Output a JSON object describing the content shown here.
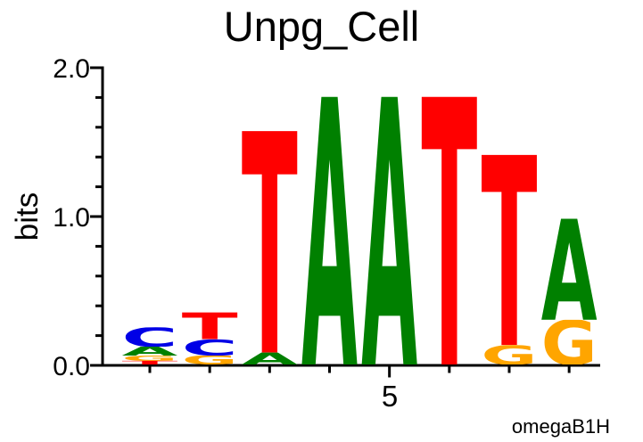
{
  "chart_data": {
    "type": "sequence_logo",
    "title": "Unpg_Cell",
    "xlabel": "",
    "ylabel": "bits",
    "credit": "omegaB1H",
    "ylim": [
      0.0,
      2.0
    ],
    "ytick_labels": [
      "0.0",
      "1.0",
      "2.0"
    ],
    "ytick_major_values": [
      0.0,
      1.0,
      2.0
    ],
    "ytick_minor_step": 0.2,
    "grid": false,
    "legend": "none",
    "x_positions": [
      1,
      2,
      3,
      4,
      5,
      6,
      7,
      8
    ],
    "x_labeled_position": 5,
    "x_label_text": "5",
    "colors": {
      "A": "#008000",
      "C": "#0000E6",
      "G": "#FFA500",
      "T": "#FF0000"
    },
    "positions": [
      {
        "pos": 1,
        "stack": [
          {
            "base": "C",
            "bits": 0.13
          },
          {
            "base": "A",
            "bits": 0.06
          },
          {
            "base": "G",
            "bits": 0.035
          },
          {
            "base": "T",
            "bits": 0.025
          }
        ]
      },
      {
        "pos": 2,
        "stack": [
          {
            "base": "T",
            "bits": 0.18
          },
          {
            "base": "C",
            "bits": 0.11
          },
          {
            "base": "G",
            "bits": 0.06
          }
        ]
      },
      {
        "pos": 3,
        "stack": [
          {
            "base": "T",
            "bits": 1.49
          },
          {
            "base": "A",
            "bits": 0.08
          }
        ]
      },
      {
        "pos": 4,
        "stack": [
          {
            "base": "A",
            "bits": 1.8
          }
        ]
      },
      {
        "pos": 5,
        "stack": [
          {
            "base": "A",
            "bits": 1.8
          }
        ]
      },
      {
        "pos": 6,
        "stack": [
          {
            "base": "T",
            "bits": 1.8
          }
        ]
      },
      {
        "pos": 7,
        "stack": [
          {
            "base": "T",
            "bits": 1.28
          },
          {
            "base": "G",
            "bits": 0.13
          }
        ]
      },
      {
        "pos": 8,
        "stack": [
          {
            "base": "A",
            "bits": 0.68
          },
          {
            "base": "G",
            "bits": 0.3
          }
        ]
      }
    ]
  }
}
